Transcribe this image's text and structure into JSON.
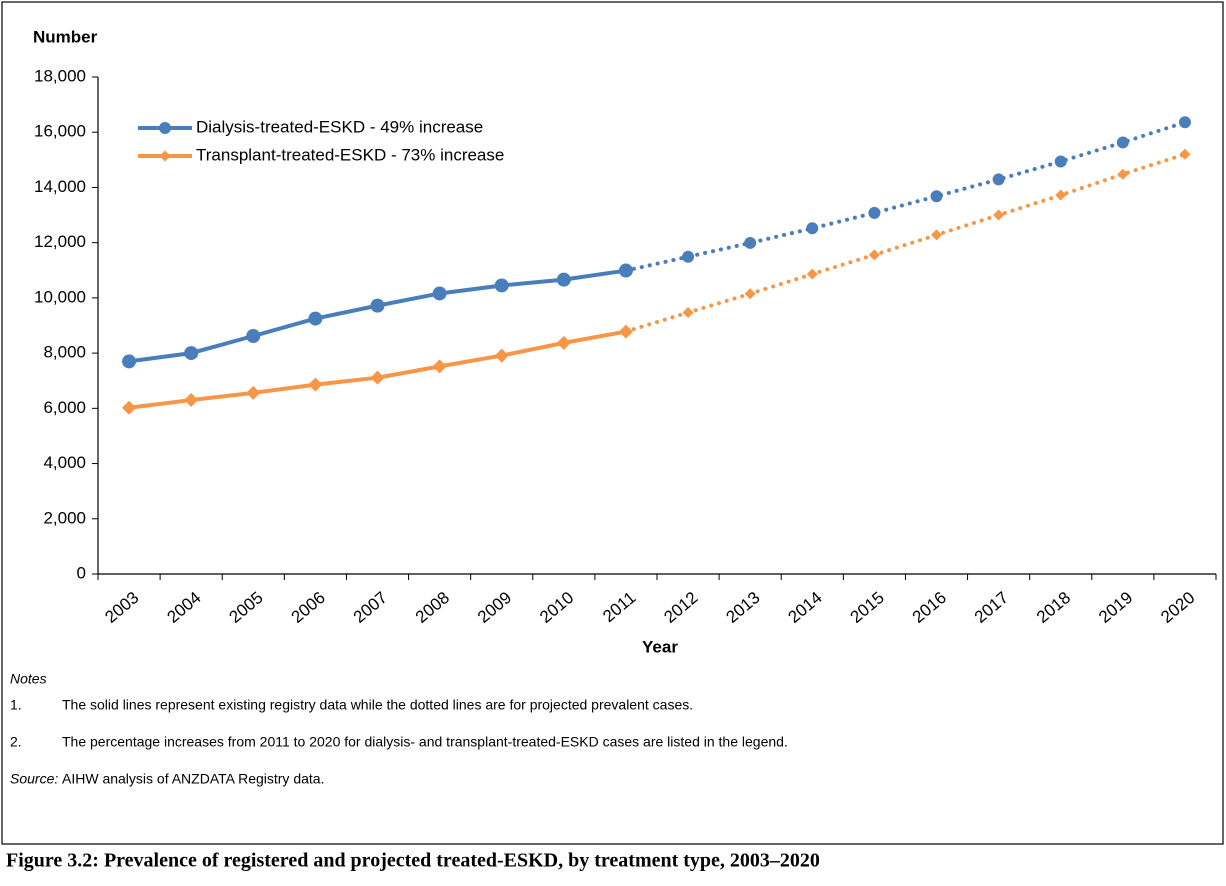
{
  "chart_data": {
    "type": "line",
    "y_axis_title": "Number",
    "x_axis_title": "Year",
    "categories": [
      "2003",
      "2004",
      "2005",
      "2006",
      "2007",
      "2008",
      "2009",
      "2010",
      "2011",
      "2012",
      "2013",
      "2014",
      "2015",
      "2016",
      "2017",
      "2018",
      "2019",
      "2020"
    ],
    "solid_until": "2011",
    "series": [
      {
        "name": "Dialysis-treated-ESKD - 49% increase",
        "color": "#4a7ebb",
        "marker": "circle",
        "values": [
          7700,
          8000,
          8620,
          9250,
          9720,
          10160,
          10450,
          10660,
          10990,
          11490,
          11990,
          12520,
          13080,
          13680,
          14290,
          14940,
          15630,
          16360
        ]
      },
      {
        "name": "Transplant-treated-ESKD - 73% increase",
        "color": "#f79646",
        "marker": "diamond",
        "values": [
          6020,
          6300,
          6560,
          6860,
          7110,
          7520,
          7910,
          8370,
          8780,
          9470,
          10150,
          10860,
          11560,
          12280,
          13000,
          13720,
          14480,
          15200
        ]
      }
    ],
    "ylim": [
      0,
      18000
    ],
    "yticks": [
      0,
      {
        "value": 2000,
        "label": "2,000"
      },
      {
        "value": 4000,
        "label": "4,000"
      },
      {
        "value": 6000,
        "label": "6,000"
      },
      {
        "value": 8000,
        "label": "8,000"
      },
      {
        "value": 10000,
        "label": "10,000"
      },
      {
        "value": 12000,
        "label": "12,000"
      },
      {
        "value": 14000,
        "label": "14,000"
      },
      {
        "value": 16000,
        "label": "16,000"
      },
      {
        "value": 18000,
        "label": "18,000"
      }
    ],
    "grid": false,
    "legend": "top-left"
  },
  "notes": {
    "heading": "Notes",
    "items": [
      {
        "number": "1.",
        "text": "The solid lines represent existing registry data while the dotted lines are for projected prevalent cases."
      },
      {
        "number": "2.",
        "text": "The percentage increases from 2011 to 2020 for dialysis- and transplant-treated-ESKD cases are listed in the legend."
      }
    ],
    "source_label": "Source:",
    "source_text": "AIHW analysis of ANZDATA Registry data.",
    "caption": "Figure 3.2: Prevalence of registered and projected treated-ESKD, by treatment type, 2003–2020"
  }
}
